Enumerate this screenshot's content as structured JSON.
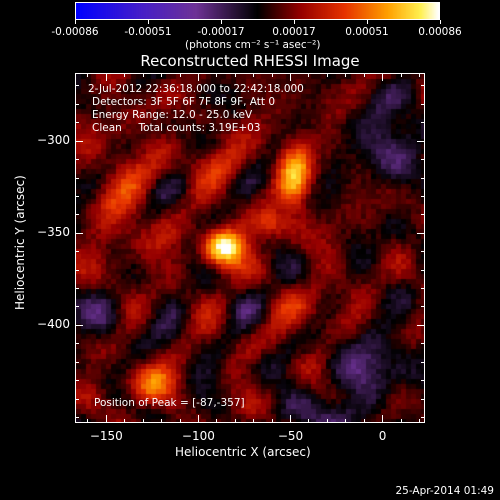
{
  "chart_data": {
    "type": "heatmap",
    "title": "Reconstructed RHESSI Image",
    "xlabel": "Heliocentric X (arcsec)",
    "ylabel": "Heliocentric Y (arcsec)",
    "xlim": [
      -167,
      23
    ],
    "ylim": [
      -453,
      -263
    ],
    "x_ticks": [
      -150,
      -100,
      -50,
      0
    ],
    "y_ticks": [
      -300,
      -350,
      -400
    ],
    "colorbar": {
      "range": [
        -0.00086,
        0.00086
      ],
      "ticks": [
        "-0.00086",
        "-0.00051",
        "-0.00017",
        "0.00017",
        "0.00051",
        "0.00086"
      ],
      "units_label": "(photons cm⁻² s⁻¹ asec⁻²)",
      "colormap": "blue-purple-black-red-orange-yellow-white"
    },
    "annotations": {
      "time_range": "2-Jul-2012 22:36:18.000 to 22:42:18.000",
      "detectors": "Detectors: 3F 5F 6F 7F 8F 9F, Att 0",
      "energy": "Energy Range: 12.0 - 25.0 keV",
      "clean": "Clean     Total counts: 3.19E+03",
      "peak": "Position of Peak = [-87,-357]"
    },
    "peak": {
      "x": -87,
      "y": -357
    },
    "grid": false,
    "legend": "colorbar-top"
  },
  "footer": {
    "timestamp": "25-Apr-2014 01:49"
  }
}
